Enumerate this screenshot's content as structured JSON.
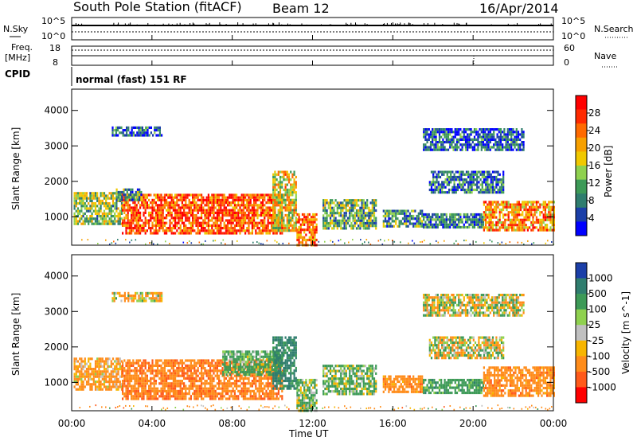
{
  "header": {
    "station": "South Pole Station (fitACF)",
    "beam": "Beam 12",
    "date": "16/Apr/2014"
  },
  "top_panels": {
    "nsky_label": "N.Sky",
    "nsearch_label": "N.Search",
    "nsky_ticks": [
      "10^5",
      "10^0"
    ],
    "nsearch_ticks": [
      "10^5",
      "10^0"
    ],
    "freq_label": "Freq.",
    "freq_unit": "[MHz]",
    "freq_ticks": [
      "18",
      "8"
    ],
    "nave_label": "Nave",
    "nave_ticks": [
      "60",
      "0"
    ],
    "cpid_label": "CPID",
    "cpid_text": "normal (fast) 151 RF"
  },
  "x_axis": {
    "title": "Time UT",
    "ticks": [
      "00:00",
      "04:00",
      "08:00",
      "12:00",
      "16:00",
      "20:00",
      "00:00"
    ]
  },
  "colors": {
    "power_scale": [
      "#0000ff",
      "#1b3fa8",
      "#2f7d6e",
      "#3d9a57",
      "#8fd14f",
      "#f0c800",
      "#f7a000",
      "#ff6a00",
      "#ff2a00",
      "#ff0000"
    ],
    "velocity_scale": [
      "#ff0000",
      "#ff5a1a",
      "#ff8c1a",
      "#f7b500",
      "#c0c0c0",
      "#8fd14f",
      "#3d9a57",
      "#2f7d6e",
      "#1b3fa8"
    ]
  },
  "chart_data": [
    {
      "type": "heatmap",
      "name": "power",
      "ylabel": "Slant Range [km]",
      "yticks": [
        "1000",
        "2000",
        "3000",
        "4000"
      ],
      "ylim": [
        200,
        4600
      ],
      "xlim_hours": [
        0,
        24
      ],
      "colorbar": {
        "label": "Power [dB]",
        "ticks": [
          "28",
          "24",
          "20",
          "16",
          "12",
          "8",
          "4"
        ],
        "range": [
          0,
          32
        ]
      },
      "regions": [
        {
          "t": [
            0.1,
            2.5
          ],
          "r": [
            800,
            1700
          ],
          "level": 14
        },
        {
          "t": [
            2.5,
            10.5
          ],
          "r": [
            550,
            1650
          ],
          "level": 26
        },
        {
          "t": [
            2.2,
            3.5
          ],
          "r": [
            1500,
            1800
          ],
          "level": 10
        },
        {
          "t": [
            10.0,
            11.2
          ],
          "r": [
            600,
            2300
          ],
          "level": 18
        },
        {
          "t": [
            11.2,
            12.2
          ],
          "r": [
            200,
            1100
          ],
          "level": 24
        },
        {
          "t": [
            12.5,
            15.2
          ],
          "r": [
            700,
            1500
          ],
          "level": 12
        },
        {
          "t": [
            2.0,
            4.5
          ],
          "r": [
            3300,
            3550
          ],
          "level": 6
        },
        {
          "t": [
            15.5,
            17.5
          ],
          "r": [
            700,
            1200
          ],
          "level": 10
        },
        {
          "t": [
            17.5,
            22.5
          ],
          "r": [
            2900,
            3500
          ],
          "level": 6
        },
        {
          "t": [
            17.8,
            21.5
          ],
          "r": [
            1700,
            2300
          ],
          "level": 8
        },
        {
          "t": [
            17.5,
            20.5
          ],
          "r": [
            700,
            1100
          ],
          "level": 8
        },
        {
          "t": [
            20.5,
            24.0
          ],
          "r": [
            650,
            1450
          ],
          "level": 22
        }
      ]
    },
    {
      "type": "heatmap",
      "name": "velocity",
      "ylabel": "Slant Range [km]",
      "yticks": [
        "1000",
        "2000",
        "3000",
        "4000"
      ],
      "ylim": [
        200,
        4600
      ],
      "xlim_hours": [
        0,
        24
      ],
      "colorbar": {
        "label": "Velocity [m s^-1]",
        "ticks": [
          "1000",
          "500",
          "100",
          "25",
          "-25",
          "-100",
          "-500",
          "-1000"
        ]
      },
      "regions": [
        {
          "t": [
            0.1,
            2.5
          ],
          "r": [
            800,
            1700
          ],
          "level": -200
        },
        {
          "t": [
            2.5,
            10.5
          ],
          "r": [
            550,
            1650
          ],
          "level": -400
        },
        {
          "t": [
            7.5,
            10.5
          ],
          "r": [
            1200,
            1900
          ],
          "level": 200
        },
        {
          "t": [
            10.0,
            11.2
          ],
          "r": [
            800,
            2300
          ],
          "level": 600
        },
        {
          "t": [
            11.2,
            12.2
          ],
          "r": [
            200,
            1100
          ],
          "level": 150
        },
        {
          "t": [
            12.5,
            15.2
          ],
          "r": [
            700,
            1500
          ],
          "level": 150
        },
        {
          "t": [
            2.0,
            4.5
          ],
          "r": [
            3300,
            3550
          ],
          "level": -100
        },
        {
          "t": [
            15.5,
            17.5
          ],
          "r": [
            700,
            1200
          ],
          "level": -300
        },
        {
          "t": [
            17.5,
            22.5
          ],
          "r": [
            2900,
            3500
          ],
          "level": 0
        },
        {
          "t": [
            17.8,
            21.5
          ],
          "r": [
            1700,
            2300
          ],
          "level": 0
        },
        {
          "t": [
            17.5,
            20.5
          ],
          "r": [
            700,
            1100
          ],
          "level": 300
        },
        {
          "t": [
            20.5,
            24.0
          ],
          "r": [
            650,
            1450
          ],
          "level": -300
        }
      ]
    }
  ]
}
